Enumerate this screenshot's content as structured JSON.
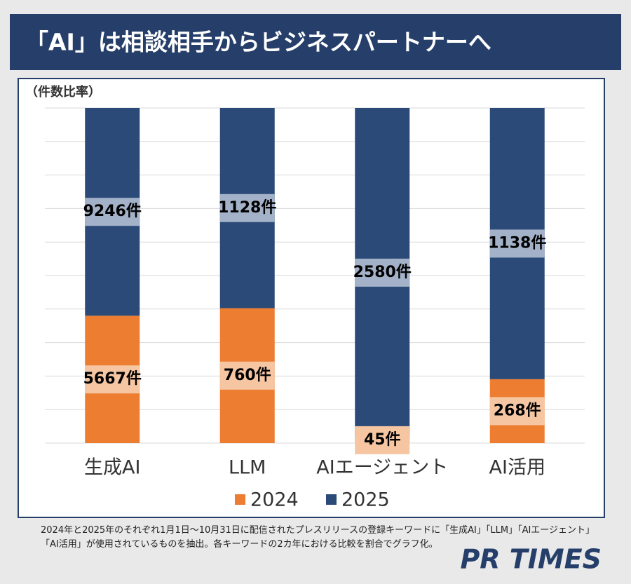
{
  "title": "「AI」は相談相手からビジネスパートナーへ",
  "chart_data": {
    "type": "bar",
    "stacking": "percent",
    "y_label": "（件数比率）",
    "categories": [
      "生成AI",
      "LLM",
      "AIエージェント",
      "AI活用"
    ],
    "series": [
      {
        "name": "2024",
        "color": "#ed7d31",
        "label_bg": "#f6c6a3",
        "values": [
          5667,
          760,
          45,
          268
        ],
        "value_labels": [
          "5667件",
          "760件",
          "45件",
          "268件"
        ]
      },
      {
        "name": "2025",
        "color": "#2b4a78",
        "label_bg": "#a3b2c8",
        "values": [
          9246,
          1128,
          2580,
          1138
        ],
        "value_labels": [
          "9246件",
          "1128件",
          "2580件",
          "1138件"
        ]
      }
    ],
    "ylim": [
      0,
      100
    ],
    "yticks": [
      0,
      10,
      20,
      30,
      40,
      50,
      60,
      70,
      80,
      90,
      100
    ],
    "tick_labels": false,
    "grid": true,
    "legend": "bottom"
  },
  "note": "2024年と2025年のそれぞれ1月1日～10月31日に配信されたプレスリリースの登録キーワードに「生成AI」「LLM」「AIエージェント」「AI活用」が使用されているものを抽出。各キーワードの2カ年における比較を割合でグラフ化。",
  "logo": "PR TIMES"
}
